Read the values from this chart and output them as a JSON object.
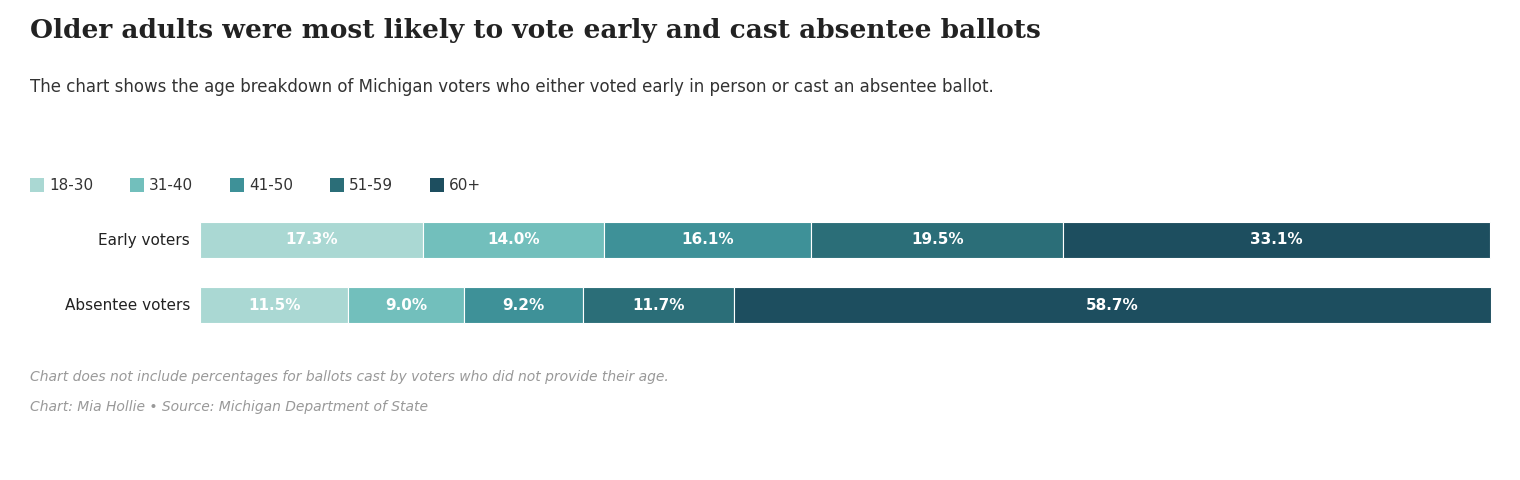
{
  "title": "Older adults were most likely to vote early and cast absentee ballots",
  "subtitle": "The chart shows the age breakdown of Michigan voters who either voted early in person or cast an absentee ballot.",
  "footnote1": "Chart does not include percentages for ballots cast by voters who did not provide their age.",
  "footnote2": "Chart: Mia Hollie • Source: Michigan Department of State",
  "categories": [
    "18-30",
    "31-40",
    "41-50",
    "51-59",
    "60+"
  ],
  "colors": [
    "#aad8d3",
    "#72bfbc",
    "#3e9198",
    "#2b6e78",
    "#1d4e5f"
  ],
  "early_voters": [
    17.3,
    14.0,
    16.1,
    19.5,
    33.1
  ],
  "absentee_voters": [
    11.5,
    9.0,
    9.2,
    11.7,
    58.7
  ],
  "row_labels": [
    "Early voters",
    "Absentee voters"
  ],
  "background_color": "#ffffff",
  "title_fontsize": 19,
  "subtitle_fontsize": 12,
  "legend_fontsize": 11,
  "label_fontsize": 11,
  "bar_label_fontsize": 11,
  "footnote_fontsize": 10
}
